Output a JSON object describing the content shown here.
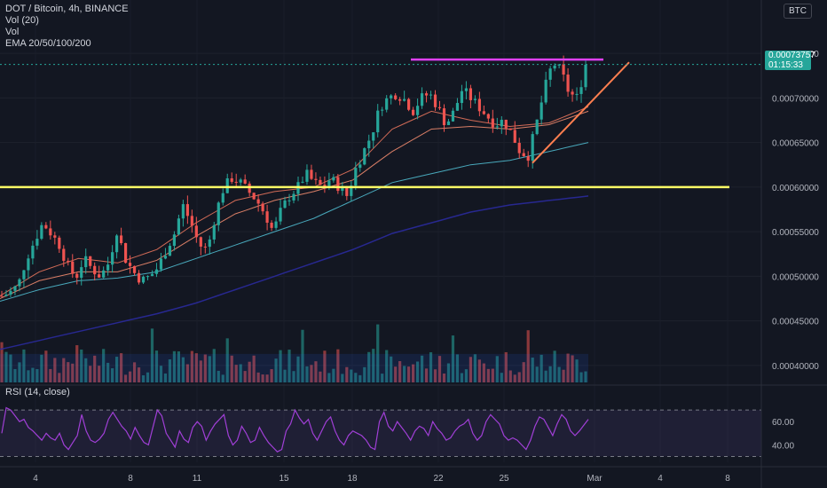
{
  "legend": {
    "symbol": "DOT / Bitcoin, 4h, BINANCE",
    "vol20": "Vol (20)",
    "vol": "Vol",
    "ema": "EMA 20/50/100/200"
  },
  "currency": "BTC",
  "last_price": {
    "value": "0.00073757",
    "countdown": "01:15:33"
  },
  "rsi_label": "RSI (14, close)",
  "colors": {
    "background": "#131722",
    "up": "#26a69a",
    "down": "#ef5350",
    "ema20": "#e5735c",
    "ema50": "#f08a6e",
    "ema100": "#4fb8cc",
    "ema200": "#2a2a9c",
    "resistance": "#e040fb",
    "support": "#ffff66",
    "trendline": "#ff7f50",
    "rsi": "#a03fd6"
  },
  "chart_data": [
    {
      "type": "candlestick",
      "title": "DOT / Bitcoin, 4h, BINANCE",
      "x_ticks": [
        "4",
        "8",
        "11",
        "15",
        "18",
        "22",
        "25",
        "Mar",
        "4",
        "8"
      ],
      "y_ticks": [
        "0.00075000",
        "0.00070000",
        "0.00065000",
        "0.00060000",
        "0.00055000",
        "0.00050000",
        "0.00045000",
        "0.00040000"
      ],
      "ylim": [
        0.00038,
        0.00077
      ],
      "candles_count": 133,
      "close_path": [
        0.000478,
        0.000482,
        0.00049,
        0.00052,
        0.00054,
        0.00056,
        0.000548,
        0.000535,
        0.000512,
        0.000498,
        0.00052,
        0.000508,
        0.0005,
        0.000515,
        0.000552,
        0.00052,
        0.000505,
        0.000495,
        0.0005,
        0.00051,
        0.00053,
        0.000548,
        0.00058,
        0.00056,
        0.000535,
        0.00053,
        0.00057,
        0.0006,
        0.00061,
        0.000605,
        0.000595,
        0.000585,
        0.00057,
        0.00055,
        0.000575,
        0.00059,
        0.0006,
        0.000615,
        0.000605,
        0.0006,
        0.00061,
        0.0006,
        0.00059,
        0.00062,
        0.00064,
        0.00066,
        0.00069,
        0.0007,
        0.000705,
        0.000698,
        0.000685,
        0.0007,
        0.000705,
        0.00069,
        0.00067,
        0.000685,
        0.00071,
        0.0007,
        0.00069,
        0.00068,
        0.00067,
        0.000675,
        0.00066,
        0.00064,
        0.000635,
        0.00067,
        0.00071,
        0.00074,
        0.00073,
        0.000705,
        0.0007,
        0.000738
      ],
      "close_path_axis": "relative position 0-1 across first 72% of plot",
      "last_close": 0.00073757,
      "ema": [
        {
          "name": "EMA 20",
          "values": [
            0.000478,
            0.000505,
            0.00052,
            0.000515,
            0.00053,
            0.00056,
            0.000585,
            0.000595,
            0.0006,
            0.00062,
            0.000665,
            0.000685,
            0.000675,
            0.000668,
            0.000672,
            0.00069
          ]
        },
        {
          "name": "EMA 50",
          "values": [
            0.000475,
            0.000495,
            0.000505,
            0.000505,
            0.000518,
            0.000545,
            0.00057,
            0.000585,
            0.000595,
            0.000608,
            0.00064,
            0.000665,
            0.000668,
            0.000665,
            0.00067,
            0.000685
          ]
        },
        {
          "name": "EMA 100",
          "values": [
            0.000472,
            0.000485,
            0.000495,
            0.000498,
            0.000505,
            0.00052,
            0.000535,
            0.00055,
            0.000565,
            0.000585,
            0.000605,
            0.000615,
            0.000625,
            0.00063,
            0.00064,
            0.00065
          ]
        },
        {
          "name": "EMA 200",
          "values": [
            0.000418,
            0.000428,
            0.000438,
            0.000448,
            0.000458,
            0.00047,
            0.000485,
            0.0005,
            0.000515,
            0.00053,
            0.000548,
            0.00056,
            0.000572,
            0.00058,
            0.000585,
            0.00059
          ]
        }
      ],
      "drawings": {
        "resistance_level": 0.000743,
        "support_level": 0.0006,
        "trendline": [
          {
            "x": "27",
            "y": 0.000627
          },
          {
            "x": "Mar 2",
            "y": 0.00074
          }
        ]
      },
      "volume_ma_level": 0.000407
    },
    {
      "type": "line",
      "title": "RSI (14, close)",
      "y_ticks": [
        "60.00",
        "40.00"
      ],
      "ylim": [
        25,
        80
      ],
      "bands": [
        70,
        30
      ],
      "values": [
        50,
        72,
        70,
        65,
        60,
        62,
        55,
        52,
        48,
        44,
        50,
        46,
        44,
        50,
        40,
        36,
        42,
        48,
        66,
        52,
        44,
        42,
        45,
        50,
        62,
        68,
        62,
        56,
        52,
        45,
        55,
        48,
        42,
        40,
        55,
        70,
        65,
        50,
        44,
        38,
        52,
        45,
        42,
        55,
        60,
        56,
        44,
        52,
        58,
        62,
        66,
        48,
        40,
        44,
        56,
        50,
        42,
        44,
        55,
        48,
        42,
        38,
        34,
        36,
        52,
        58,
        70,
        63,
        58,
        62,
        50,
        44,
        52,
        60,
        64,
        52,
        44,
        40,
        48,
        52,
        50,
        48,
        44,
        38,
        36,
        60,
        68,
        56,
        52,
        60,
        55,
        50,
        44,
        52,
        56,
        54,
        48,
        60,
        54,
        50,
        44,
        46,
        52,
        56,
        58,
        62,
        50,
        44,
        48,
        60,
        66,
        62,
        58,
        48,
        44,
        46,
        44,
        40,
        36,
        44,
        56,
        64,
        62,
        55,
        48,
        58,
        66,
        62,
        52,
        48,
        52,
        57,
        62
      ]
    }
  ]
}
